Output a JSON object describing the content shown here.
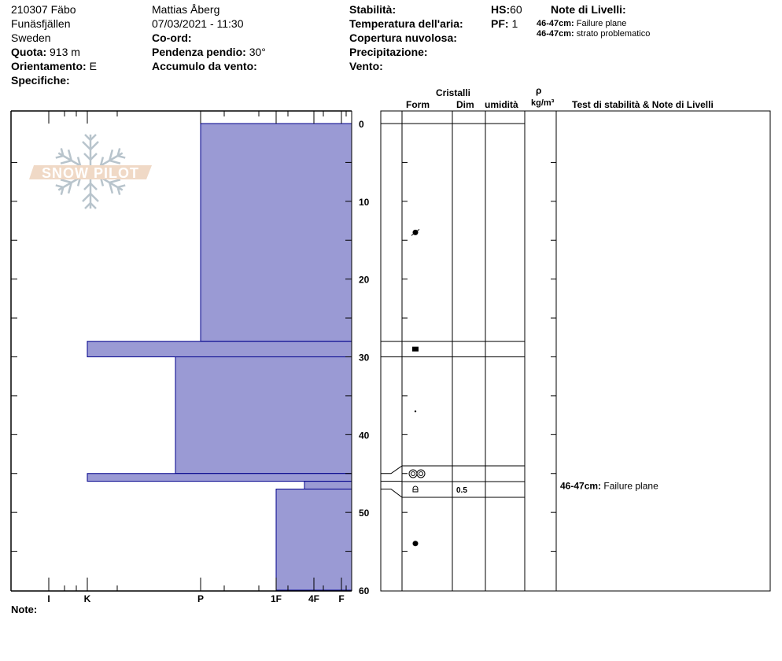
{
  "header": {
    "col1": {
      "site": "210307 Fäbo",
      "area": "Funäsfjällen",
      "country": "Sweden",
      "elevation_label": "Quota:",
      "elevation": "913 m",
      "aspect_label": "Orientamento:",
      "aspect": "E",
      "specifics_label": "Specifiche:"
    },
    "col2": {
      "observer": "Mattias Åberg",
      "datetime": "07/03/2021 - 11:30",
      "coord_label": "Co-ord:",
      "slope_label": "Pendenza pendio:",
      "slope": "30°",
      "wind_loading_label": "Accumulo da vento:"
    },
    "col3": {
      "stability_label": "Stabilità:",
      "air_temp_label": "Temperatura dell'aria:",
      "cloud_label": "Copertura nuvolosa:",
      "precip_label": "Precipitazione:",
      "wind_label": "Vento:"
    },
    "col4": {
      "hs_label": "HS:",
      "hs": "60",
      "pf_label": "PF:",
      "pf": "1"
    },
    "layer_notes": {
      "title": "Note di Livelli:",
      "items": [
        {
          "depth": "46-47cm:",
          "text": "Failure plane"
        },
        {
          "depth": "46-47cm:",
          "text": "strato problematico"
        }
      ]
    }
  },
  "table_headers": {
    "crystals": "Cristalli",
    "form": "Form",
    "dim": "Dim",
    "moisture": "umidità",
    "rho": "ρ",
    "density_unit": "kg/m³",
    "tests": "Test di stabilità & Note di Livelli"
  },
  "notes_label": "Note:",
  "logo_text": "SNOW PILOT",
  "colors": {
    "hardness_fill": "#9a9ad4",
    "hardness_stroke": "#00008b"
  },
  "chart_data": {
    "type": "bar",
    "orientation": "horizontal",
    "ylabel": "",
    "ylim": [
      0,
      60
    ],
    "y_ticks": [
      "0",
      "10",
      "20",
      "30",
      "40",
      "50",
      "60"
    ],
    "x_ticks": [
      "I",
      "K",
      "P",
      "1F",
      "4F",
      "F"
    ],
    "layers": [
      {
        "top": 0,
        "bottom": 28,
        "hardness": "P",
        "form": "decomposing",
        "size": ""
      },
      {
        "top": 28,
        "bottom": 30,
        "hardness": "K",
        "form": "ice",
        "size": ""
      },
      {
        "top": 30,
        "bottom": 45,
        "hardness": "P+",
        "form": "small-dot",
        "size": ""
      },
      {
        "top": 45,
        "bottom": 46,
        "hardness": "K",
        "form": "double-ring",
        "size": ""
      },
      {
        "top": 46,
        "bottom": 47,
        "hardness": "4F+",
        "form": "depth-hoar",
        "size": "0.5"
      },
      {
        "top": 47,
        "bottom": 60,
        "hardness": "1F",
        "form": "round",
        "size": ""
      }
    ],
    "layer_test_notes": [
      {
        "depth": "46-47cm:",
        "text": "Failure plane",
        "at": 46.5
      }
    ]
  }
}
